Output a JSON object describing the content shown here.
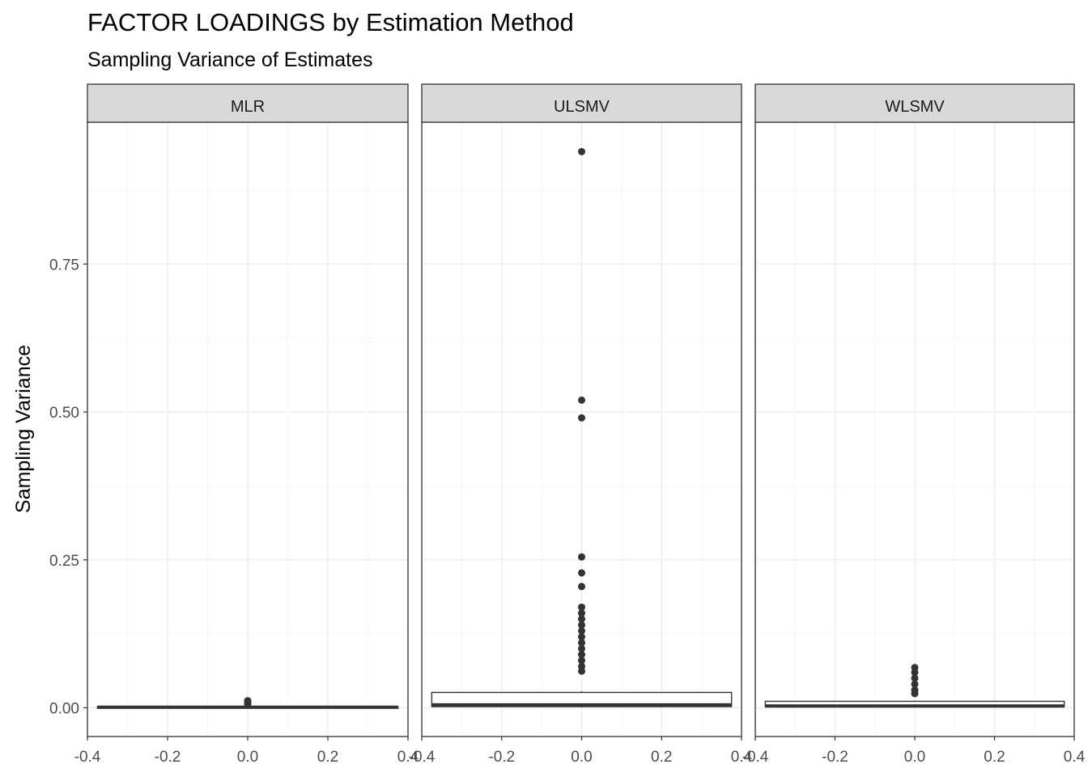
{
  "title": "FACTOR LOADINGS by Estimation Method",
  "subtitle": "Sampling Variance of Estimates",
  "colors": {
    "strip_fill": "#d9d9d9",
    "panel_border": "#333333",
    "grid_major": "#ebebeb",
    "grid_minor": "#f5f5f5",
    "box_line": "#333333",
    "box_fill": "#ffffff",
    "outlier": "#333333",
    "tick_text": "#4d4d4d"
  },
  "chart_data": {
    "type": "boxplot",
    "ylabel": "Sampling Variance",
    "xlabel": "",
    "x_ticks": [
      "-0.4",
      "-0.2",
      "0.0",
      "0.2",
      "0.4"
    ],
    "x_tick_values": [
      -0.4,
      -0.2,
      0.0,
      0.2,
      0.4
    ],
    "y_ticks": [
      "0.00",
      "0.25",
      "0.50",
      "0.75"
    ],
    "y_tick_values": [
      0.0,
      0.25,
      0.5,
      0.75
    ],
    "xlim": [
      -0.4,
      0.4
    ],
    "ylim": [
      -0.04,
      0.99
    ],
    "grid": true,
    "panels": [
      {
        "label": "MLR",
        "box": {
          "min": 0.0,
          "q1": 0.0005,
          "median": 0.001,
          "q3": 0.002,
          "max": 0.004
        },
        "outliers": [
          0.006,
          0.008,
          0.01,
          0.012
        ]
      },
      {
        "label": "ULSMV",
        "box": {
          "min": 0.0005,
          "q1": 0.002,
          "median": 0.005,
          "q3": 0.026,
          "max": 0.028
        },
        "outliers": [
          0.94,
          0.52,
          0.49,
          0.255,
          0.228,
          0.205,
          0.17,
          0.16,
          0.15,
          0.14,
          0.13,
          0.12,
          0.11,
          0.1,
          0.09,
          0.08,
          0.07,
          0.062
        ]
      },
      {
        "label": "WLSMV",
        "box": {
          "min": 0.0005,
          "q1": 0.002,
          "median": 0.003,
          "q3": 0.011,
          "max": 0.012
        },
        "outliers": [
          0.068,
          0.06,
          0.05,
          0.04,
          0.03,
          0.024
        ]
      }
    ]
  }
}
